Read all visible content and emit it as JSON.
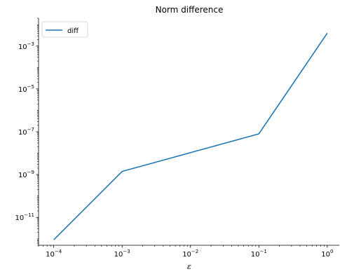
{
  "chart_data": {
    "type": "line",
    "title": "Norm difference",
    "xlabel": "ε",
    "ylabel": "",
    "xscale": "log",
    "yscale": "log",
    "xlim": [
      6e-05,
      1.5
    ],
    "ylim": [
      5e-13,
      0.02
    ],
    "grid": false,
    "legend_position": "top-left",
    "x_ticks": [
      {
        "value": 0.0001,
        "base": "10",
        "exp": "−4"
      },
      {
        "value": 0.001,
        "base": "10",
        "exp": "−3"
      },
      {
        "value": 0.01,
        "base": "10",
        "exp": "−2"
      },
      {
        "value": 0.1,
        "base": "10",
        "exp": "−1"
      },
      {
        "value": 1,
        "base": "10",
        "exp": "0"
      }
    ],
    "y_ticks": [
      {
        "value": 1e-11,
        "base": "10",
        "exp": "−11"
      },
      {
        "value": 1e-09,
        "base": "10",
        "exp": "−9"
      },
      {
        "value": 1e-07,
        "base": "10",
        "exp": "−7"
      },
      {
        "value": 1e-05,
        "base": "10",
        "exp": "−5"
      },
      {
        "value": 0.001,
        "base": "10",
        "exp": "−3"
      }
    ],
    "series": [
      {
        "name": "diff",
        "color": "#1f77b4",
        "x": [
          0.0001,
          0.001,
          0.1,
          1
        ],
        "y": [
          9e-13,
          1.4e-09,
          8e-08,
          0.004
        ]
      }
    ]
  }
}
